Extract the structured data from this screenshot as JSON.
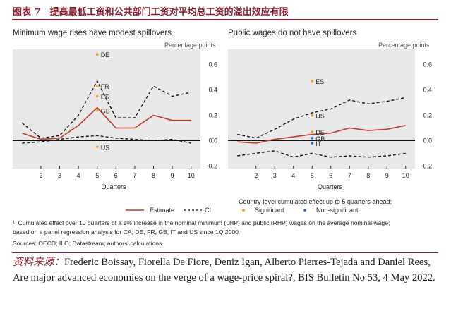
{
  "figure": {
    "title": "图表 7　提高最低工资和公共部门工资对平均总工资的溢出效应有限"
  },
  "panels": [
    {
      "title": "Minimum wage rises have modest spillovers",
      "unit": "Percentage points",
      "xlabel": "Quarters"
    },
    {
      "title": "Public wages do not have spillovers",
      "unit": "Percentage points",
      "xlabel": "Quarters"
    }
  ],
  "legend": {
    "estimate": "Estimate",
    "ci": "CI",
    "country_title": "Country-level cumulated effect up to 5 quarters ahead:",
    "significant": "Significant",
    "non_significant": "Non-significant"
  },
  "footnotes": {
    "note_marker": "¹",
    "note_line1": "Cumulated effect over 10 quarters of a 1% increase in the nominal minimum (LHP) and public (RHP) wages on the average nominal wage;",
    "note_line2": "based on a panel regression analysis for CA, DE, FR, GB, IT and US since 1Q 2000.",
    "sources": "Sources: OECD; ILO; Datastream; authors' calculations."
  },
  "source": {
    "label": "资料来源：",
    "text": "Frederic Boissay, Fiorella De Fiore, Deniz Igan, Alberto Pierres-Tejada and Daniel Rees, Are major advanced economies on the verge of a wage-price spiral?, BIS Bulletin No 53, 4 May 2022."
  },
  "colors": {
    "accent": "#8c1d2c",
    "estimate": "#c0392b",
    "ci": "#111111",
    "significant": "#f0a030",
    "non_significant": "#3a6fd8",
    "plot_bg": "#e9e9e9",
    "zero_line": "#111111"
  },
  "chart_data": [
    {
      "type": "line",
      "title": "Minimum wage rises have modest spillovers",
      "xlabel": "Quarters",
      "ylabel": "Percentage points",
      "x": [
        1,
        2,
        3,
        4,
        5,
        6,
        7,
        8,
        9,
        10
      ],
      "xticks": [
        2,
        3,
        4,
        5,
        6,
        7,
        8,
        9,
        10
      ],
      "xlim": [
        0.5,
        10.5
      ],
      "ylim": [
        -0.22,
        0.72
      ],
      "yticks": [
        -0.2,
        0.0,
        0.2,
        0.4,
        0.6
      ],
      "ytick_labels": [
        "−0.2",
        "0.0",
        "0.2",
        "0.4",
        "0.6"
      ],
      "series": [
        {
          "name": "Estimate",
          "style": "solid",
          "values": [
            0.06,
            0.01,
            0.02,
            0.12,
            0.26,
            0.1,
            0.1,
            0.2,
            0.16,
            0.16
          ]
        },
        {
          "name": "CI upper",
          "style": "dashed",
          "values": [
            0.14,
            0.02,
            0.04,
            0.2,
            0.47,
            0.18,
            0.18,
            0.43,
            0.35,
            0.38
          ]
        },
        {
          "name": "CI lower",
          "style": "dashed",
          "values": [
            -0.02,
            -0.01,
            0.01,
            0.03,
            0.04,
            0.02,
            0.01,
            0.0,
            0.01,
            -0.02
          ]
        }
      ],
      "country_points": [
        {
          "label": "DE",
          "x": 5,
          "y": 0.68,
          "significant": true
        },
        {
          "label": "FR",
          "x": 5,
          "y": 0.43,
          "significant": true
        },
        {
          "label": "ES",
          "x": 5,
          "y": 0.35,
          "significant": true
        },
        {
          "label": "GB",
          "x": 5,
          "y": 0.24,
          "significant": true
        },
        {
          "label": "US",
          "x": 5,
          "y": -0.05,
          "significant": true
        }
      ]
    },
    {
      "type": "line",
      "title": "Public wages do not have spillovers",
      "xlabel": "Quarters",
      "ylabel": "Percentage points",
      "x": [
        1,
        2,
        3,
        4,
        5,
        6,
        7,
        8,
        9,
        10
      ],
      "xticks": [
        2,
        3,
        4,
        5,
        6,
        7,
        8,
        9,
        10
      ],
      "xlim": [
        0.5,
        10.5
      ],
      "ylim": [
        -0.22,
        0.72
      ],
      "yticks": [
        -0.2,
        0.0,
        0.2,
        0.4,
        0.6
      ],
      "ytick_labels": [
        "−0.2",
        "0.0",
        "0.2",
        "0.4",
        "0.6"
      ],
      "series": [
        {
          "name": "Estimate",
          "style": "solid",
          "values": [
            -0.01,
            -0.02,
            0.01,
            0.03,
            0.05,
            0.06,
            0.1,
            0.08,
            0.09,
            0.12
          ]
        },
        {
          "name": "CI upper",
          "style": "dashed",
          "values": [
            0.05,
            0.02,
            0.09,
            0.17,
            0.22,
            0.25,
            0.32,
            0.29,
            0.31,
            0.34
          ]
        },
        {
          "name": "CI lower",
          "style": "dashed",
          "values": [
            -0.12,
            -0.1,
            -0.08,
            -0.13,
            -0.1,
            -0.13,
            -0.12,
            -0.13,
            -0.12,
            -0.1
          ]
        }
      ],
      "country_points": [
        {
          "label": "ES",
          "x": 5,
          "y": 0.47,
          "significant": true
        },
        {
          "label": "US",
          "x": 5,
          "y": 0.2,
          "significant": true
        },
        {
          "label": "DE",
          "x": 5,
          "y": 0.07,
          "significant": true
        },
        {
          "label": "GB",
          "x": 5,
          "y": 0.02,
          "significant": false
        },
        {
          "label": "IT",
          "x": 5,
          "y": -0.02,
          "significant": false
        }
      ]
    }
  ]
}
